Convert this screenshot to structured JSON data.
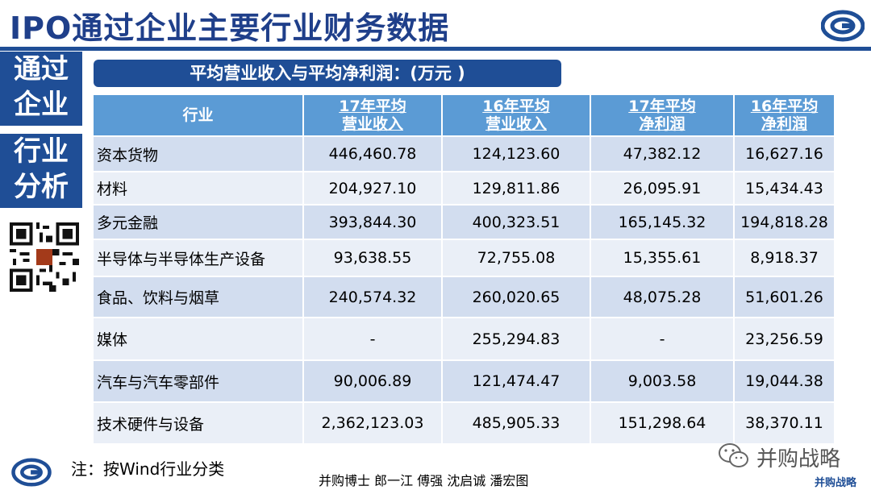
{
  "header": {
    "title": "IPO通过企业主要行业财务数据"
  },
  "sidebar": {
    "block1": "通过企业",
    "block2": "行业分析"
  },
  "table": {
    "subtitle": "平均营业收入与平均净利润：(万元 )",
    "columns": [
      "行业",
      "17年平均营业收入",
      "16年平均营业收入",
      "17年平均净利润",
      "16年平均净利润"
    ],
    "rows": [
      [
        "资本货物",
        "446,460.78",
        "124,123.60",
        "47,382.12",
        "16,627.16"
      ],
      [
        "材料",
        "204,927.10",
        "129,811.86",
        "26,095.91",
        "15,434.43"
      ],
      [
        "多元金融",
        "393,844.30",
        "400,323.51",
        "165,145.32",
        "194,818.28"
      ],
      [
        "半导体与半导体生产设备",
        "93,638.55",
        "72,755.08",
        "15,355.61",
        "8,918.37"
      ],
      [
        "食品、饮料与烟草",
        "240,574.32",
        "260,020.65",
        "48,075.28",
        "51,601.26"
      ],
      [
        "媒体",
        "-",
        "255,294.83",
        "-",
        "23,256.59"
      ],
      [
        "汽车与汽车零部件",
        "90,006.89",
        "121,474.47",
        "9,003.58",
        "19,044.38"
      ],
      [
        "技术硬件与设备",
        "2,362,123.03",
        "485,905.33",
        "151,298.64",
        "38,370.11"
      ]
    ]
  },
  "footer": {
    "note": "注：按Wind行业分类",
    "authors": "并购博士 郎一江 傅强 沈启诚 潘宏图",
    "watermark": "并购战略",
    "watermark_small": "并购战略"
  },
  "colors": {
    "brand": "#1f4e96",
    "header_cell": "#5b9bd5",
    "row_dark": "#d2ddef",
    "row_light": "#eaeff7"
  },
  "icons": [
    "swirl-logo-icon",
    "qr-code-icon",
    "wechat-icon"
  ]
}
